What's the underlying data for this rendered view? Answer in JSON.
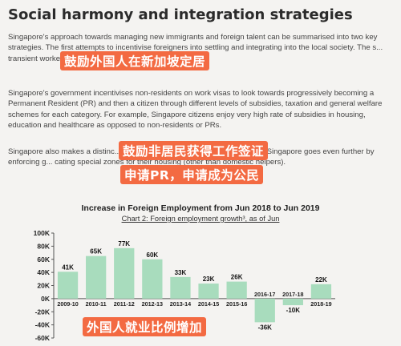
{
  "article": {
    "heading": "Social harmony and integration strategies",
    "paragraph1": "Singapore's approach towards managing new immigrants and foreign talent can be summarised into two key strategies. The first attempts to incentivise foreigners into settling and integrating into the local society. The s... transient workers and knowledge-ba...",
    "paragraph2": "Singapore's government incentivises non-residents on work visas to look towards progressively becoming a Permanent Resident (PR) and then a citizen through different levels of subsidies, taxation and general welfare schemes for each category. For example, Singapore citizens enjoy very high rate of subsidies in housing, education and healthcare as opposed to non-residents or PRs.",
    "paragraph3": "Singapore also makes a distinc... cated foreign talent as opposed to trans... Singapore goes even further by enforcing g... cating special zones for their housing (other than domestic helpers)."
  },
  "overlays": {
    "caption1": "鼓励外国人在新加坡定居",
    "caption2": "鼓励非居民获得工作签证",
    "caption3": "申请PR，申请成为公民",
    "caption4": "外国人就业比例增加"
  },
  "chart_data": {
    "type": "bar",
    "title": "Increase in Foreign Employment from Jun 2018 to Jun 2019",
    "subtitle": "Chart 2: Foreign employment growth³, as of Jun",
    "categories": [
      "2009-10",
      "2010-11",
      "2011-12",
      "2012-13",
      "2013-14",
      "2014-15",
      "2015-16",
      "2016-17",
      "2017-18",
      "2018-19"
    ],
    "values": [
      41,
      65,
      77,
      60,
      33,
      23,
      26,
      -36,
      -10,
      22
    ],
    "value_labels": [
      "41K",
      "65K",
      "77K",
      "60K",
      "33K",
      "23K",
      "26K",
      "-36K",
      "-10K",
      "22K"
    ],
    "y_ticks": [
      100,
      80,
      60,
      40,
      20,
      0,
      -20,
      -40,
      -60
    ],
    "y_tick_labels": [
      "100K",
      "80K",
      "60K",
      "40K",
      "20K",
      "0K",
      "-20K",
      "-40K",
      "-60K"
    ],
    "ylim": [
      -60,
      100
    ],
    "bar_color": "#a8dcbd",
    "grid": false
  }
}
